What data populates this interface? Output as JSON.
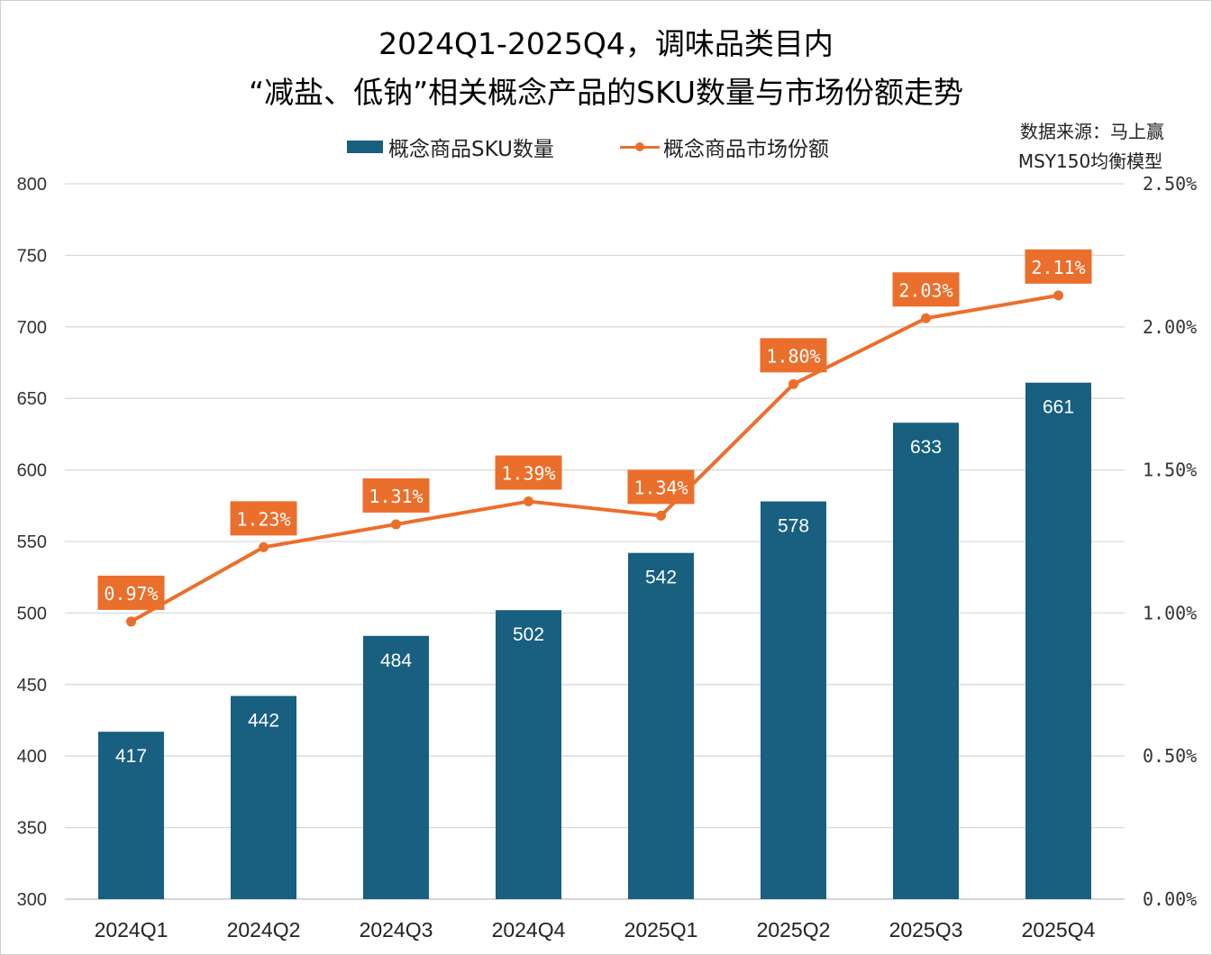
{
  "chart_data": {
    "type": "bar+line",
    "title_line1": "2024Q1-2025Q4，调味品类目内",
    "title_line2": "“减盐、低钠”相关概念产品的SKU数量与市场份额走势",
    "source_line1": "数据来源：马上赢",
    "source_line2": "MSY150均衡模型",
    "categories": [
      "2024Q1",
      "2024Q2",
      "2024Q3",
      "2024Q4",
      "2025Q1",
      "2025Q2",
      "2025Q3",
      "2025Q4"
    ],
    "series": [
      {
        "name": "概念商品SKU数量",
        "type": "bar",
        "axis": "left",
        "color": "#185F80",
        "values": [
          417,
          442,
          484,
          502,
          542,
          578,
          633,
          661
        ],
        "labels": [
          "417",
          "442",
          "484",
          "502",
          "542",
          "578",
          "633",
          "661"
        ]
      },
      {
        "name": "概念商品市场份额",
        "type": "line",
        "axis": "right",
        "color": "#EB6F2C",
        "values": [
          0.97,
          1.23,
          1.31,
          1.39,
          1.34,
          1.8,
          2.03,
          2.11
        ],
        "labels": [
          "0.97%",
          "1.23%",
          "1.31%",
          "1.39%",
          "1.34%",
          "1.80%",
          "2.03%",
          "2.11%"
        ]
      }
    ],
    "y_left": {
      "range": [
        300,
        800
      ],
      "ticks": [
        "300",
        "350",
        "400",
        "450",
        "500",
        "550",
        "600",
        "650",
        "700",
        "750",
        "800"
      ]
    },
    "y_right": {
      "range": [
        0,
        2.5
      ],
      "ticks": [
        "0.00%",
        "0.50%",
        "1.00%",
        "1.50%",
        "2.00%",
        "2.50%"
      ]
    },
    "grid": true,
    "legend_position": "top"
  }
}
